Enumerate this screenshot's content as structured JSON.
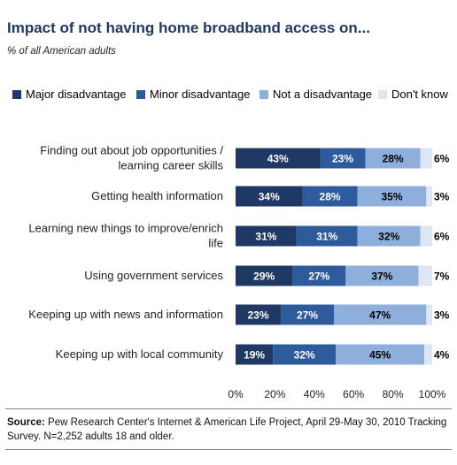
{
  "title": "Impact of not having home broadband access on...",
  "subtitle": "% of all American  adults",
  "source": {
    "label": "Source:",
    "text": "Pew Research Center's Internet & American Life Project, April 29-May 30, 2010 Tracking Survey. N=2,252 adults 18 and older."
  },
  "colors": {
    "major": "#1f3864",
    "minor": "#2e5b9c",
    "not": "#8eaedb",
    "dontknow": "#dde6f3"
  },
  "chart_data": {
    "type": "bar",
    "orientation": "horizontal",
    "stacked": true,
    "xlim": [
      0,
      100
    ],
    "x_ticks": [
      "0%",
      "20%",
      "40%",
      "60%",
      "80%",
      "100%"
    ],
    "legend_position": "top",
    "categories": [
      [
        "Finding out about job opportunities /",
        "learning career skills"
      ],
      [
        "Getting health information"
      ],
      [
        "Learning new things to improve/enrich",
        "life"
      ],
      [
        "Using government services"
      ],
      [
        "Keeping up with news and information"
      ],
      [
        "Keeping up with local community"
      ]
    ],
    "series": [
      {
        "name": "Major disadvantage",
        "values": [
          43,
          34,
          31,
          29,
          23,
          19
        ],
        "labels": [
          "43%",
          "34%",
          "31%",
          "29%",
          "23%",
          "19%"
        ]
      },
      {
        "name": "Minor disadvantage",
        "values": [
          23,
          28,
          31,
          27,
          27,
          32
        ],
        "labels": [
          "23%",
          "28%",
          "31%",
          "27%",
          "27%",
          "32%"
        ]
      },
      {
        "name": "Not a disadvantage",
        "values": [
          28,
          35,
          32,
          37,
          47,
          45
        ],
        "labels": [
          "28%",
          "35%",
          "32%",
          "37%",
          "47%",
          "45%"
        ]
      },
      {
        "name": "Don't know",
        "values": [
          6,
          3,
          6,
          7,
          3,
          4
        ],
        "labels": [
          "6%",
          "3%",
          "6%",
          "7%",
          "3%",
          "4%"
        ]
      }
    ]
  }
}
